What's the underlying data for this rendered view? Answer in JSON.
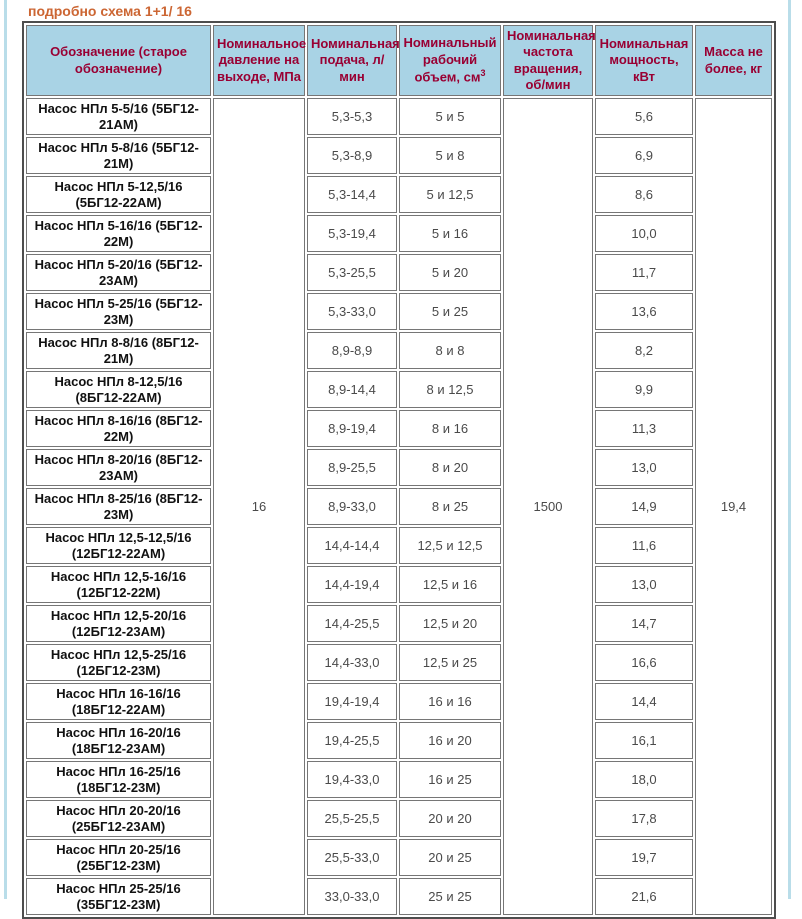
{
  "page": {
    "title_link": "подробно схема 1+1/ 16",
    "colors": {
      "title": "#cc6633",
      "header_bg": "#a9d3e5",
      "header_text": "#990033",
      "border_inner": "#767676",
      "border_outer": "#4d4d4d",
      "edge_stripe": "#b9dde9"
    }
  },
  "table": {
    "headers": {
      "designation": "Обозначение (старое обозначение)",
      "pressure": "Номинальное давление на выходе, МПа",
      "flow": "Номинальная подача, л/ мин",
      "volume": "Номинальный рабочий объем, см",
      "volume_sup": "3",
      "speed": "Номинальная частота вращения, об/мин",
      "power": "Номинальная мощность, кВт",
      "mass": "Масса не более, кг"
    },
    "merged": {
      "pressure": "16",
      "speed": "1500",
      "mass": "19,4"
    },
    "rows": [
      {
        "name": "Насос НПл 5-5/16 (5БГ12-21АМ)",
        "flow": "5,3-5,3",
        "volume": "5 и 5",
        "power": "5,6"
      },
      {
        "name": "Насос НПл 5-8/16 (5БГ12-21М)",
        "flow": "5,3-8,9",
        "volume": "5 и 8",
        "power": "6,9"
      },
      {
        "name": "Насос НПл 5-12,5/16 (5БГ12-22АМ)",
        "flow": "5,3-14,4",
        "volume": "5 и 12,5",
        "power": "8,6"
      },
      {
        "name": "Насос НПл 5-16/16 (5БГ12-22М)",
        "flow": "5,3-19,4",
        "volume": "5 и 16",
        "power": "10,0"
      },
      {
        "name": "Насос НПл 5-20/16 (5БГ12-23АМ)",
        "flow": "5,3-25,5",
        "volume": "5 и 20",
        "power": "11,7"
      },
      {
        "name": "Насос НПл 5-25/16 (5БГ12-23М)",
        "flow": "5,3-33,0",
        "volume": "5 и 25",
        "power": "13,6"
      },
      {
        "name": "Насос НПл 8-8/16 (8БГ12-21М)",
        "flow": "8,9-8,9",
        "volume": "8 и 8",
        "power": "8,2"
      },
      {
        "name": "Насос НПл 8-12,5/16 (8БГ12-22АМ)",
        "flow": "8,9-14,4",
        "volume": "8 и 12,5",
        "power": "9,9"
      },
      {
        "name": "Насос НПл 8-16/16 (8БГ12-22М)",
        "flow": "8,9-19,4",
        "volume": "8 и 16",
        "power": "11,3"
      },
      {
        "name": "Насос НПл 8-20/16 (8БГ12-23АМ)",
        "flow": "8,9-25,5",
        "volume": "8 и 20",
        "power": "13,0"
      },
      {
        "name": "Насос НПл 8-25/16 (8БГ12-23М)",
        "flow": "8,9-33,0",
        "volume": "8 и 25",
        "power": "14,9"
      },
      {
        "name": "Насос НПл 12,5-12,5/16 (12БГ12-22АМ)",
        "flow": "14,4-14,4",
        "volume": "12,5 и 12,5",
        "power": "11,6"
      },
      {
        "name": "Насос НПл 12,5-16/16 (12БГ12-22М)",
        "flow": "14,4-19,4",
        "volume": "12,5 и 16",
        "power": "13,0"
      },
      {
        "name": "Насос НПл 12,5-20/16 (12БГ12-23АМ)",
        "flow": "14,4-25,5",
        "volume": "12,5 и 20",
        "power": "14,7"
      },
      {
        "name": "Насос НПл 12,5-25/16 (12БГ12-23М)",
        "flow": "14,4-33,0",
        "volume": "12,5 и 25",
        "power": "16,6"
      },
      {
        "name": "Насос НПл 16-16/16 (18БГ12-22АМ)",
        "flow": "19,4-19,4",
        "volume": "16 и 16",
        "power": "14,4"
      },
      {
        "name": "Насос НПл 16-20/16 (18БГ12-23АМ)",
        "flow": "19,4-25,5",
        "volume": "16 и 20",
        "power": "16,1"
      },
      {
        "name": "Насос НПл 16-25/16 (18БГ12-23М)",
        "flow": "19,4-33,0",
        "volume": "16 и 25",
        "power": "18,0"
      },
      {
        "name": "Насос НПл 20-20/16 (25БГ12-23АМ)",
        "flow": "25,5-25,5",
        "volume": "20 и 20",
        "power": "17,8"
      },
      {
        "name": "Насос НПл 20-25/16 (25БГ12-23М)",
        "flow": "25,5-33,0",
        "volume": "20 и 25",
        "power": "19,7"
      },
      {
        "name": "Насос НПл 25-25/16 (35БГ12-23М)",
        "flow": "33,0-33,0",
        "volume": "25 и 25",
        "power": "21,6"
      }
    ]
  }
}
